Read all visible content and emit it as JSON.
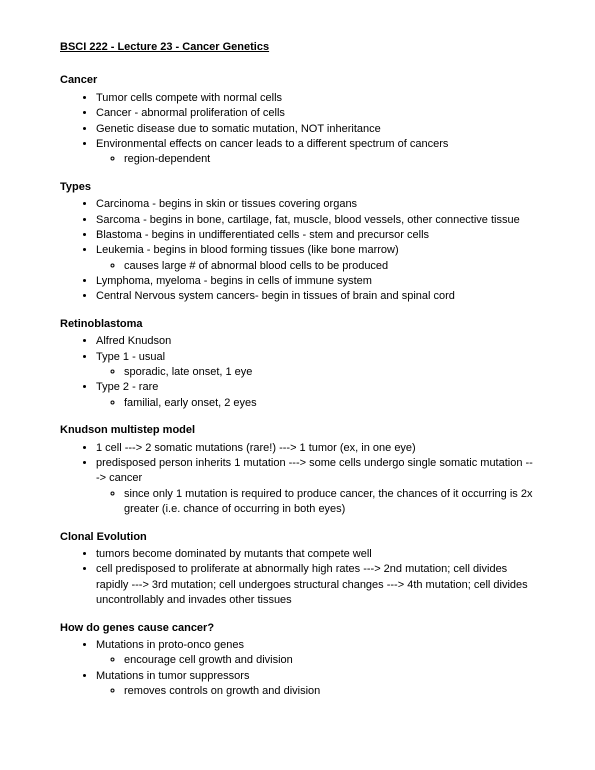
{
  "title": "BSCI 222 - Lecture 23 - Cancer Genetics",
  "sections": {
    "cancer": {
      "heading": "Cancer",
      "b1": "Tumor cells compete with normal cells",
      "b2": "Cancer - abnormal proliferation of cells",
      "b3": "Genetic disease due to somatic mutation, NOT inheritance",
      "b4": "Environmental effects on cancer leads to a different spectrum of cancers",
      "b4a": "region-dependent"
    },
    "types": {
      "heading": "Types",
      "b1": "Carcinoma - begins in skin or tissues covering organs",
      "b2": "Sarcoma - begins in bone, cartilage, fat, muscle, blood vessels, other connective tissue",
      "b3": "Blastoma - begins in undifferentiated cells - stem and precursor cells",
      "b4": "Leukemia - begins in blood forming tissues (like bone marrow)",
      "b4a": "causes large # of abnormal blood cells to be produced",
      "b5": "Lymphoma, myeloma - begins in cells of immune system",
      "b6": "Central Nervous system cancers- begin in tissues of brain and spinal cord"
    },
    "retinoblastoma": {
      "heading": "Retinoblastoma",
      "b1": "Alfred Knudson",
      "b2": "Type 1 - usual",
      "b2a": "sporadic, late onset, 1 eye",
      "b3": "Type 2 - rare",
      "b3a": "familial, early onset, 2 eyes"
    },
    "knudson": {
      "heading": "Knudson multistep model",
      "b1": "1 cell ---> 2 somatic mutations (rare!) ---> 1 tumor (ex, in one eye)",
      "b2": "predisposed person inherits 1 mutation ---> some cells undergo single somatic mutation ---> cancer",
      "b2a": "since only 1 mutation is required to produce cancer, the chances of it occurring is 2x greater (i.e. chance of occurring in both eyes)"
    },
    "clonal": {
      "heading": "Clonal Evolution",
      "b1": "tumors become dominated by mutants that compete well",
      "b2": "cell predisposed to proliferate at abnormally high rates ---> 2nd mutation; cell divides rapidly ---> 3rd mutation; cell undergoes structural changes ---> 4th mutation; cell divides uncontrollably and invades other tissues"
    },
    "howgenes": {
      "heading": "How do genes cause cancer?",
      "b1": "Mutations in proto-onco genes",
      "b1a": "encourage cell growth and division",
      "b2": "Mutations in tumor suppressors",
      "b2a": "removes controls on growth and division"
    }
  }
}
